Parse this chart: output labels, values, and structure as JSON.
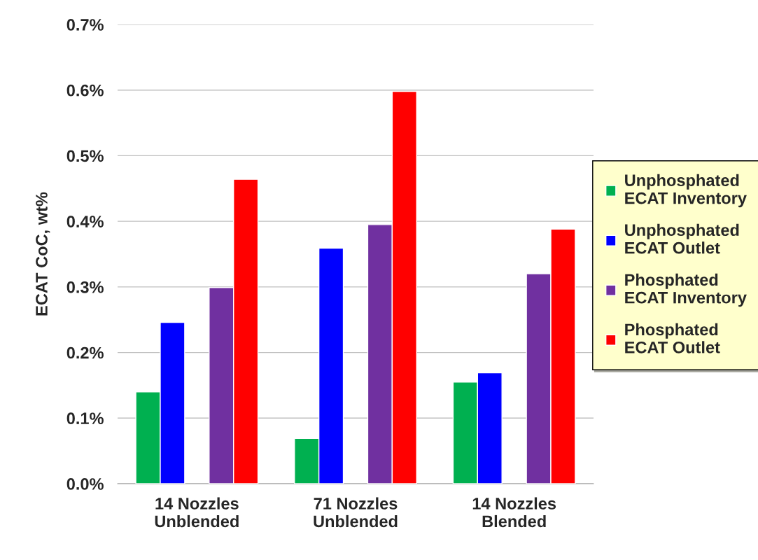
{
  "chart_data": {
    "type": "bar",
    "ylabel": "ECAT CoC, wt%",
    "categories": [
      "14 Nozzles\nUnblended",
      "71 Nozzles\nUnblended",
      "14 Nozzles\nBlended"
    ],
    "series": [
      {
        "name": "Unphosphated\nECAT Inventory",
        "color": "#00b050",
        "values": [
          0.14,
          0.069,
          0.155
        ]
      },
      {
        "name": "Unphosphated\nECAT Outlet",
        "color": "#0000ff",
        "values": [
          0.246,
          0.359,
          0.169
        ]
      },
      {
        "name": "Phosphated\nECAT Inventory",
        "color": "#7030a0",
        "values": [
          0.299,
          0.395,
          0.32
        ]
      },
      {
        "name": "Phosphated\nECAT Outlet",
        "color": "#ff0000",
        "values": [
          0.464,
          0.598,
          0.388
        ]
      }
    ],
    "ylim": [
      0,
      0.7
    ],
    "yticks": [
      {
        "value": 0,
        "label": "0.0%"
      },
      {
        "value": 0.1,
        "label": "0.1%"
      },
      {
        "value": 0.2,
        "label": "0.2%"
      },
      {
        "value": 0.3,
        "label": "0.3%"
      },
      {
        "value": 0.4,
        "label": "0.4%"
      },
      {
        "value": 0.5,
        "label": "0.5%"
      },
      {
        "value": 0.6,
        "label": "0.6%"
      },
      {
        "value": 0.7,
        "label": "0.7%"
      }
    ],
    "grid": "y",
    "legend": "right"
  }
}
